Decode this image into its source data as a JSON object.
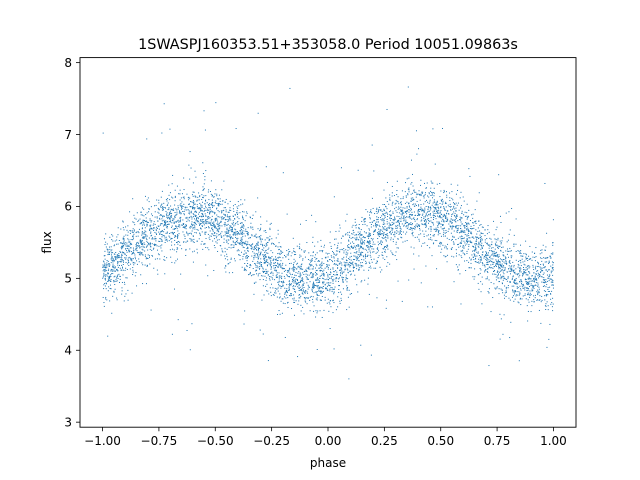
{
  "chart_data": {
    "type": "scatter",
    "title": "1SWASPJ160353.51+353058.0 Period 10051.09863s",
    "xlabel": "phase",
    "ylabel": "flux",
    "xlim": [
      -1.1,
      1.1
    ],
    "ylim": [
      2.93,
      8.07
    ],
    "xticks": [
      -1.0,
      -0.75,
      -0.5,
      -0.25,
      0.0,
      0.25,
      0.5,
      0.75,
      1.0
    ],
    "xtick_labels": [
      "−1.00",
      "−0.75",
      "−0.50",
      "−0.25",
      "0.00",
      "0.25",
      "0.50",
      "0.75",
      "1.00"
    ],
    "yticks": [
      3,
      4,
      5,
      6,
      7,
      8
    ],
    "ytick_labels": [
      "3",
      "4",
      "5",
      "6",
      "7",
      "8"
    ],
    "grid": false,
    "marker_color": "#1f77b4",
    "series": [
      {
        "x": [
          -1.0,
          -0.9,
          -0.8,
          -0.7,
          -0.6,
          -0.5,
          -0.4,
          -0.3,
          -0.2,
          -0.1,
          0.0,
          0.1,
          0.2,
          0.3,
          0.4,
          0.5,
          0.6,
          0.7,
          0.8,
          0.9,
          1.0
        ],
        "y": [
          5.05,
          5.35,
          5.6,
          5.8,
          5.88,
          5.82,
          5.6,
          5.3,
          5.05,
          4.95,
          5.0,
          5.3,
          5.6,
          5.8,
          5.9,
          5.85,
          5.65,
          5.35,
          5.1,
          4.98,
          5.0
        ]
      }
    ]
  }
}
